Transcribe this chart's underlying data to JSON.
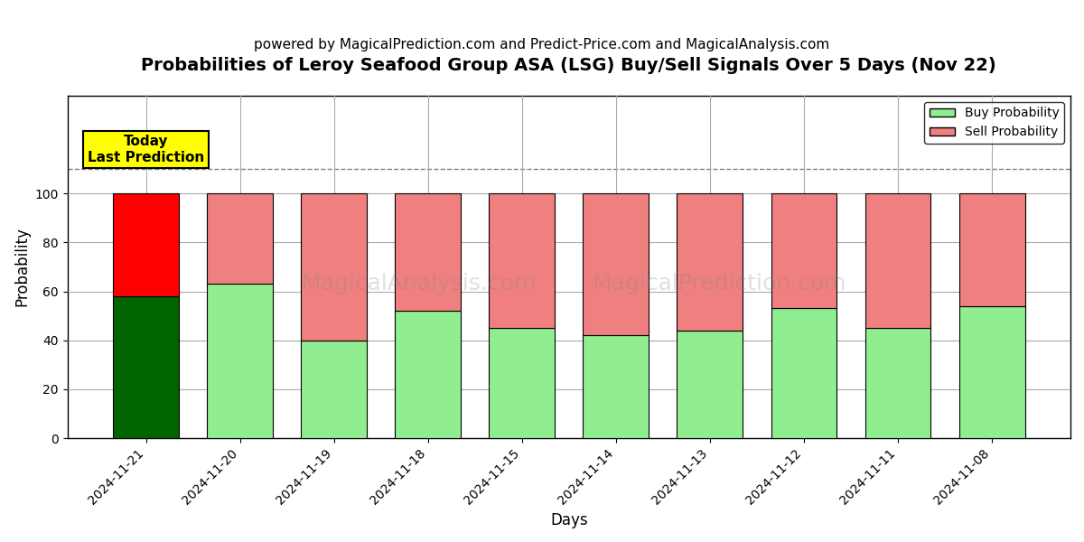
{
  "title": "Probabilities of Leroy Seafood Group ASA (LSG) Buy/Sell Signals Over 5 Days (Nov 22)",
  "subtitle": "powered by MagicalPrediction.com and Predict-Price.com and MagicalAnalysis.com",
  "xlabel": "Days",
  "ylabel": "Probability",
  "dates": [
    "2024-11-21",
    "2024-11-20",
    "2024-11-19",
    "2024-11-18",
    "2024-11-15",
    "2024-11-14",
    "2024-11-13",
    "2024-11-12",
    "2024-11-11",
    "2024-11-08"
  ],
  "buy_values": [
    58,
    63,
    40,
    52,
    45,
    42,
    44,
    53,
    45,
    54
  ],
  "sell_values": [
    42,
    37,
    60,
    48,
    55,
    58,
    56,
    47,
    55,
    46
  ],
  "today_buy_color": "#006400",
  "today_sell_color": "#FF0000",
  "other_buy_color": "#90EE90",
  "other_sell_color": "#F08080",
  "bar_edge_color": "#000000",
  "ylim": [
    0,
    120
  ],
  "yticks": [
    0,
    20,
    40,
    60,
    80,
    100
  ],
  "dashed_line_y": 110,
  "watermark_text1": "MagicalAnalysis.com",
  "watermark_text2": "MagicalPrediction.com",
  "legend_buy_label": "Buy Probability",
  "legend_sell_label": "Sell Probability",
  "today_label_text": "Today\nLast Prediction",
  "background_color": "#ffffff",
  "grid_color": "#aaaaaa",
  "title_fontsize": 14,
  "subtitle_fontsize": 11,
  "axis_label_fontsize": 12,
  "tick_fontsize": 10
}
